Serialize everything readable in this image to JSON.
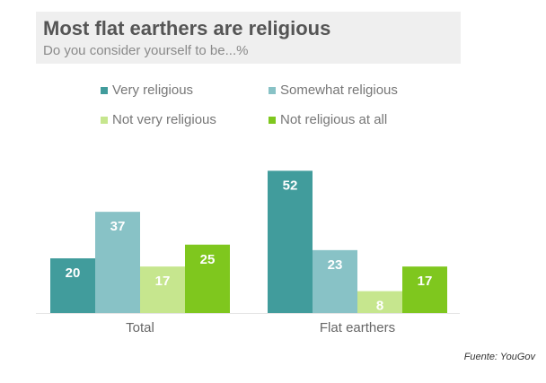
{
  "title": "Most flat earthers are religious",
  "subtitle": "Do you consider yourself to be...%",
  "source": "Fuente: YouGov",
  "colors": {
    "very_religious": "#419c9c",
    "somewhat_religious": "#88c2c6",
    "not_very_religious": "#c6e68e",
    "not_religious_at_all": "#7fc71e"
  },
  "legend": [
    {
      "label": "Very religious",
      "color": "#419c9c"
    },
    {
      "label": "Somewhat religious",
      "color": "#88c2c6"
    },
    {
      "label": "Not very religious",
      "color": "#c6e68e"
    },
    {
      "label": "Not religious at all",
      "color": "#7fc71e"
    }
  ],
  "chart_data": {
    "type": "bar",
    "title": "Most flat earthers are religious",
    "subtitle": "Do you consider yourself to be...%",
    "categories": [
      "Total",
      "Flat earthers"
    ],
    "series": [
      {
        "name": "Very religious",
        "values": [
          20,
          52
        ]
      },
      {
        "name": "Somewhat religious",
        "values": [
          37,
          23
        ]
      },
      {
        "name": "Not very religious",
        "values": [
          17,
          8
        ]
      },
      {
        "name": "Not religious at all",
        "values": [
          25,
          17
        ]
      }
    ],
    "xlabel": "",
    "ylabel": "",
    "grid": false,
    "legend_placement": "top"
  }
}
